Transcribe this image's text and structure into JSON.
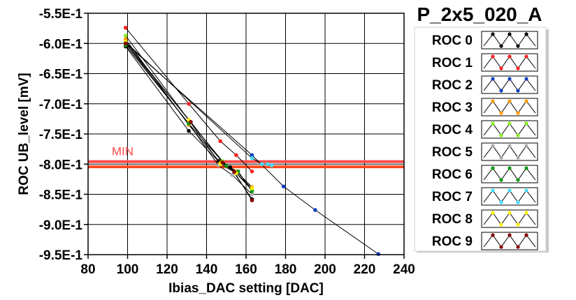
{
  "chart_data": {
    "type": "line",
    "title": "P_2x5_020_A",
    "xlabel": "Ibias_DAC setting [DAC]",
    "ylabel": "ROC UB_level [mV]",
    "xlim": [
      80,
      240
    ],
    "ylim": [
      -0.95,
      -0.55
    ],
    "x_ticks": [
      80,
      100,
      120,
      140,
      160,
      180,
      200,
      220,
      240
    ],
    "x_tick_labels": [
      "80",
      "100",
      "120",
      "140",
      "160",
      "180",
      "200",
      "220",
      "240"
    ],
    "y_ticks": [
      -0.55,
      -0.6,
      -0.65,
      -0.7,
      -0.75,
      -0.8,
      -0.85,
      -0.9,
      -0.95
    ],
    "y_tick_labels": [
      "-5.5E-1",
      "-6.0E-1",
      "-6.5E-1",
      "-7.0E-1",
      "-7.5E-1",
      "-8.0E-1",
      "-8.5E-1",
      "-9.0E-1",
      "-9.5E-1"
    ],
    "grid": true,
    "legend_position": "right",
    "line_color": "#000000",
    "threshold_lines": [
      {
        "label": "MIN",
        "y": -0.7958,
        "color": "#ff4a4a"
      },
      {
        "label": "",
        "y": -0.8045,
        "color": "#ff4a20"
      }
    ],
    "series": [
      {
        "name": "ROC 0",
        "color": "#000000",
        "x": [
          99,
          131,
          146,
          152,
          163
        ],
        "y": [
          -0.605,
          -0.745,
          -0.795,
          -0.805,
          -0.858
        ]
      },
      {
        "name": "ROC 1",
        "color": "#ff2020",
        "x": [
          99,
          131,
          147,
          155,
          163
        ],
        "y": [
          -0.574,
          -0.7,
          -0.762,
          -0.785,
          -0.812
        ]
      },
      {
        "name": "ROC 2",
        "color": "#1040c0",
        "x": [
          99,
          163,
          179,
          195,
          227
        ],
        "y": [
          -0.6,
          -0.785,
          -0.837,
          -0.876,
          -0.949
        ]
      },
      {
        "name": "ROC 3",
        "color": "#ff9900",
        "x": [
          99,
          131,
          147,
          155,
          163
        ],
        "y": [
          -0.593,
          -0.735,
          -0.798,
          -0.812,
          -0.838
        ]
      },
      {
        "name": "ROC 4",
        "color": "#88ee22",
        "x": [
          99,
          131,
          148,
          155,
          163
        ],
        "y": [
          -0.587,
          -0.727,
          -0.795,
          -0.815,
          -0.843
        ]
      },
      {
        "name": "ROC 5",
        "color": "#aaaaaa",
        "x": [
          99,
          131,
          146,
          153,
          163
        ],
        "y": [
          -0.6,
          -0.733,
          -0.802,
          -0.818,
          -0.85
        ]
      },
      {
        "name": "ROC 6",
        "color": "#119911",
        "x": [
          99,
          131,
          150,
          156,
          163
        ],
        "y": [
          -0.603,
          -0.733,
          -0.803,
          -0.812,
          -0.845
        ]
      },
      {
        "name": "ROC 7",
        "color": "#44ddff",
        "x": [
          99,
          163,
          168,
          171,
          173
        ],
        "y": [
          -0.598,
          -0.79,
          -0.8,
          -0.8,
          -0.802
        ]
      },
      {
        "name": "ROC 8",
        "color": "#ffee00",
        "x": [
          99,
          131,
          147,
          155,
          163
        ],
        "y": [
          -0.597,
          -0.727,
          -0.8,
          -0.815,
          -0.84
        ]
      },
      {
        "name": "ROC 9",
        "color": "#880000",
        "x": [
          99,
          132,
          148,
          154,
          163
        ],
        "y": [
          -0.6,
          -0.73,
          -0.797,
          -0.813,
          -0.86
        ]
      }
    ]
  }
}
